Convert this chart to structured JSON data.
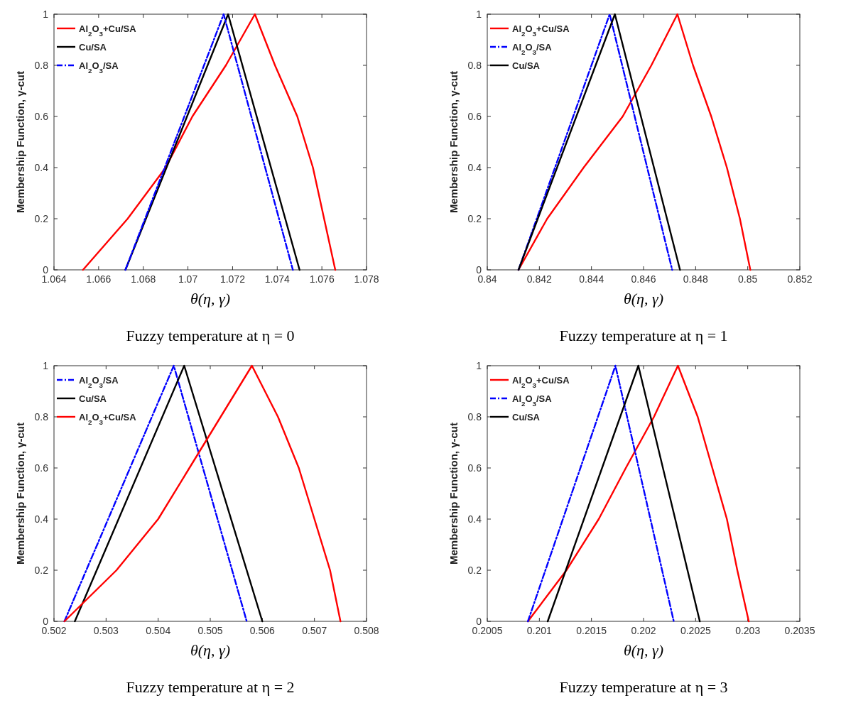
{
  "chart_data": [
    {
      "type": "line",
      "title": "Fuzzy temperature at η = 0",
      "xlabel": "θ(η, γ)",
      "ylabel": "Membership Function, γ-cut",
      "xlim": [
        1.064,
        1.078
      ],
      "xticks": [
        1.064,
        1.066,
        1.068,
        1.07,
        1.072,
        1.074,
        1.076,
        1.078
      ],
      "ylim": [
        0,
        1
      ],
      "yticks": [
        0,
        0.2,
        0.4,
        0.6,
        0.8,
        1
      ],
      "legend": "top left",
      "series": [
        {
          "name": "Al$_{2}$O$_{3}$+Cu/SA",
          "color": "#ff0000",
          "line_style": "solid",
          "x": [
            1.0653,
            1.0673,
            1.069,
            1.0702,
            1.0717,
            1.073,
            1.0739,
            1.0749,
            1.0756,
            1.0761,
            1.0766
          ],
          "values": [
            0,
            0.2,
            0.4,
            0.6,
            0.8,
            1,
            0.8,
            0.6,
            0.4,
            0.2,
            0
          ]
        },
        {
          "name": "Cu/SA",
          "color": "#000000",
          "line_style": "solid",
          "x": [
            1.0672,
            1.0718,
            1.075
          ],
          "values": [
            0,
            1,
            0
          ]
        },
        {
          "name": "Al$_{2}$O$_{3}$/SA",
          "color": "#0000ff",
          "line_style": "dashed",
          "x": [
            1.0672,
            1.0716,
            1.0747
          ],
          "values": [
            0,
            1,
            0
          ]
        }
      ]
    },
    {
      "type": "line",
      "title": "Fuzzy temperature at η = 1",
      "xlabel": "θ(η, γ)",
      "ylabel": "Membership Function, γ-cut",
      "xlim": [
        0.84,
        0.852
      ],
      "xticks": [
        0.84,
        0.842,
        0.844,
        0.846,
        0.848,
        0.85,
        0.852
      ],
      "ylim": [
        0,
        1
      ],
      "yticks": [
        0,
        0.2,
        0.4,
        0.6,
        0.8,
        1
      ],
      "legend": "top left",
      "series": [
        {
          "name": "Al$_{2}$O$_{3}$+Cu/SA",
          "color": "#ff0000",
          "line_style": "solid",
          "x": [
            0.8412,
            0.8423,
            0.8437,
            0.8452,
            0.8463,
            0.8473,
            0.8479,
            0.8486,
            0.8492,
            0.8497,
            0.8501
          ],
          "values": [
            0,
            0.2,
            0.4,
            0.6,
            0.8,
            1,
            0.8,
            0.6,
            0.4,
            0.2,
            0
          ]
        },
        {
          "name": "Al$_{2}$O$_{3}$/SA",
          "color": "#0000ff",
          "line_style": "dashed",
          "x": [
            0.8412,
            0.8447,
            0.8471
          ],
          "values": [
            0,
            1,
            0
          ]
        },
        {
          "name": "Cu/SA",
          "color": "#000000",
          "line_style": "solid",
          "x": [
            0.8412,
            0.8449,
            0.8474
          ],
          "values": [
            0,
            1,
            0
          ]
        }
      ]
    },
    {
      "type": "line",
      "title": "Fuzzy temperature at η = 2",
      "xlabel": "θ(η, γ)",
      "ylabel": "Membership Function, γ-cut",
      "xlim": [
        0.502,
        0.508
      ],
      "xticks": [
        0.502,
        0.503,
        0.504,
        0.505,
        0.506,
        0.507,
        0.508
      ],
      "ylim": [
        0,
        1
      ],
      "yticks": [
        0,
        0.2,
        0.4,
        0.6,
        0.8,
        1
      ],
      "legend": "top left",
      "series": [
        {
          "name": "Al$_{2}$O$_{3}$/SA",
          "color": "#0000ff",
          "line_style": "dashed",
          "x": [
            0.5022,
            0.5043,
            0.5057
          ],
          "values": [
            0,
            1,
            0
          ]
        },
        {
          "name": "Cu/SA",
          "color": "#000000",
          "line_style": "solid",
          "x": [
            0.5024,
            0.5045,
            0.506
          ],
          "values": [
            0,
            1,
            0
          ]
        },
        {
          "name": "Al$_{2}$O$_{3}$+Cu/SA",
          "color": "#ff0000",
          "line_style": "solid",
          "x": [
            0.5022,
            0.5032,
            0.504,
            0.5046,
            0.5052,
            0.5058,
            0.5063,
            0.5067,
            0.507,
            0.5073,
            0.5075
          ],
          "values": [
            0,
            0.2,
            0.4,
            0.6,
            0.8,
            1,
            0.8,
            0.6,
            0.4,
            0.2,
            0
          ]
        }
      ]
    },
    {
      "type": "line",
      "title": "Fuzzy temperature at η = 3",
      "xlabel": "θ(η, γ)",
      "ylabel": "Membership Function, γ-cut",
      "xlim": [
        0.2005,
        0.2035
      ],
      "xticks": [
        0.2005,
        0.201,
        0.2015,
        0.202,
        0.2025,
        0.203,
        0.2035
      ],
      "ylim": [
        0,
        1
      ],
      "yticks": [
        0,
        0.2,
        0.4,
        0.6,
        0.8,
        1
      ],
      "legend": "top left",
      "series": [
        {
          "name": "Al$_{2}$O$_{3}$+Cu/SA",
          "color": "#ff0000",
          "line_style": "solid",
          "x": [
            0.20089,
            0.20126,
            0.20157,
            0.20183,
            0.2021,
            0.20233,
            0.20252,
            0.20266,
            0.2028,
            0.2029,
            0.20301
          ],
          "values": [
            0,
            0.2,
            0.4,
            0.6,
            0.8,
            1,
            0.8,
            0.6,
            0.4,
            0.2,
            0
          ]
        },
        {
          "name": "Al$_{2}$O$_{3}$/SA",
          "color": "#0000ff",
          "line_style": "dashed",
          "x": [
            0.20089,
            0.20173,
            0.20229
          ],
          "values": [
            0,
            1,
            0
          ]
        },
        {
          "name": "Cu/SA",
          "color": "#000000",
          "line_style": "solid",
          "x": [
            0.20108,
            0.20195,
            0.20254
          ],
          "values": [
            0,
            1,
            0
          ]
        }
      ]
    }
  ]
}
